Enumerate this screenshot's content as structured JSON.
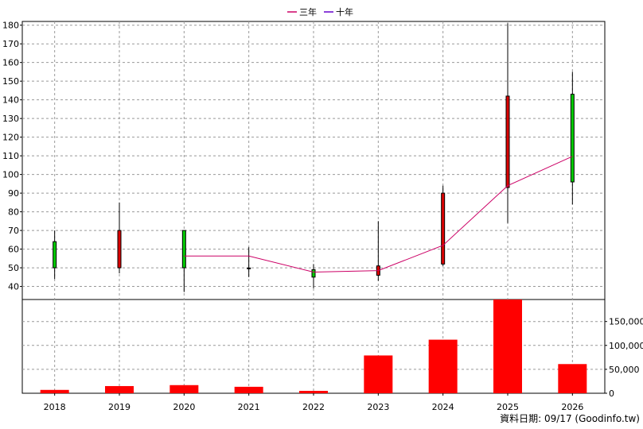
{
  "chart_data": {
    "type": "candlestick-volume",
    "legend": [
      {
        "name": "三年",
        "color": "#cc0066"
      },
      {
        "name": "十年",
        "color": "#6600cc"
      }
    ],
    "categories": [
      "2018",
      "2019",
      "2020",
      "2021",
      "2022",
      "2023",
      "2024",
      "2025",
      "2026"
    ],
    "price": {
      "ylim": [
        33,
        182
      ],
      "ticks": [
        40,
        50,
        60,
        70,
        80,
        90,
        100,
        110,
        120,
        130,
        140,
        150,
        160,
        170,
        180
      ],
      "candles": [
        {
          "x": "2018",
          "open": 50,
          "close": 64,
          "high": 70,
          "low": 44,
          "color": "#00cc00"
        },
        {
          "x": "2019",
          "open": 50,
          "close": 70,
          "high": 85,
          "low": 47,
          "color": "#dd0000"
        },
        {
          "x": "2020",
          "open": 50,
          "close": 70,
          "high": 70,
          "low": 37,
          "color": "#00cc00"
        },
        {
          "x": "2021",
          "open": 49.5,
          "close": 49.9,
          "high": 61,
          "low": 45,
          "color": "#dd0000"
        },
        {
          "x": "2022",
          "open": 45,
          "close": 49,
          "high": 52,
          "low": 39,
          "color": "#00cc00"
        },
        {
          "x": "2023",
          "open": 46,
          "close": 51,
          "high": 75,
          "low": 43,
          "color": "#dd0000"
        },
        {
          "x": "2024",
          "open": 52,
          "close": 90,
          "high": 94,
          "low": 51,
          "color": "#dd0000"
        },
        {
          "x": "2025",
          "open": 93,
          "close": 142,
          "high": 181,
          "low": 74,
          "color": "#dd0000"
        },
        {
          "x": "2026",
          "open": 96,
          "close": 143,
          "high": 155,
          "low": 84,
          "color": "#00cc00"
        }
      ],
      "ma_three_year": {
        "x": [
          "2020",
          "2021",
          "2022",
          "2023",
          "2024",
          "2025",
          "2026"
        ],
        "values": [
          56.3,
          56.3,
          47.7,
          48.5,
          62,
          94,
          109.7
        ]
      }
    },
    "volume": {
      "ylim": [
        0,
        196000
      ],
      "ticks": [
        0,
        50000,
        100000,
        150000
      ],
      "tick_labels": [
        "0",
        "50,000",
        "100,000",
        "150,000"
      ],
      "values": [
        7000,
        15000,
        17000,
        13500,
        5000,
        79000,
        112000,
        196000,
        61000
      ],
      "color": "#ff0000"
    },
    "grid": true
  },
  "footer": "資料日期: 09/17  (Goodinfo.tw)"
}
